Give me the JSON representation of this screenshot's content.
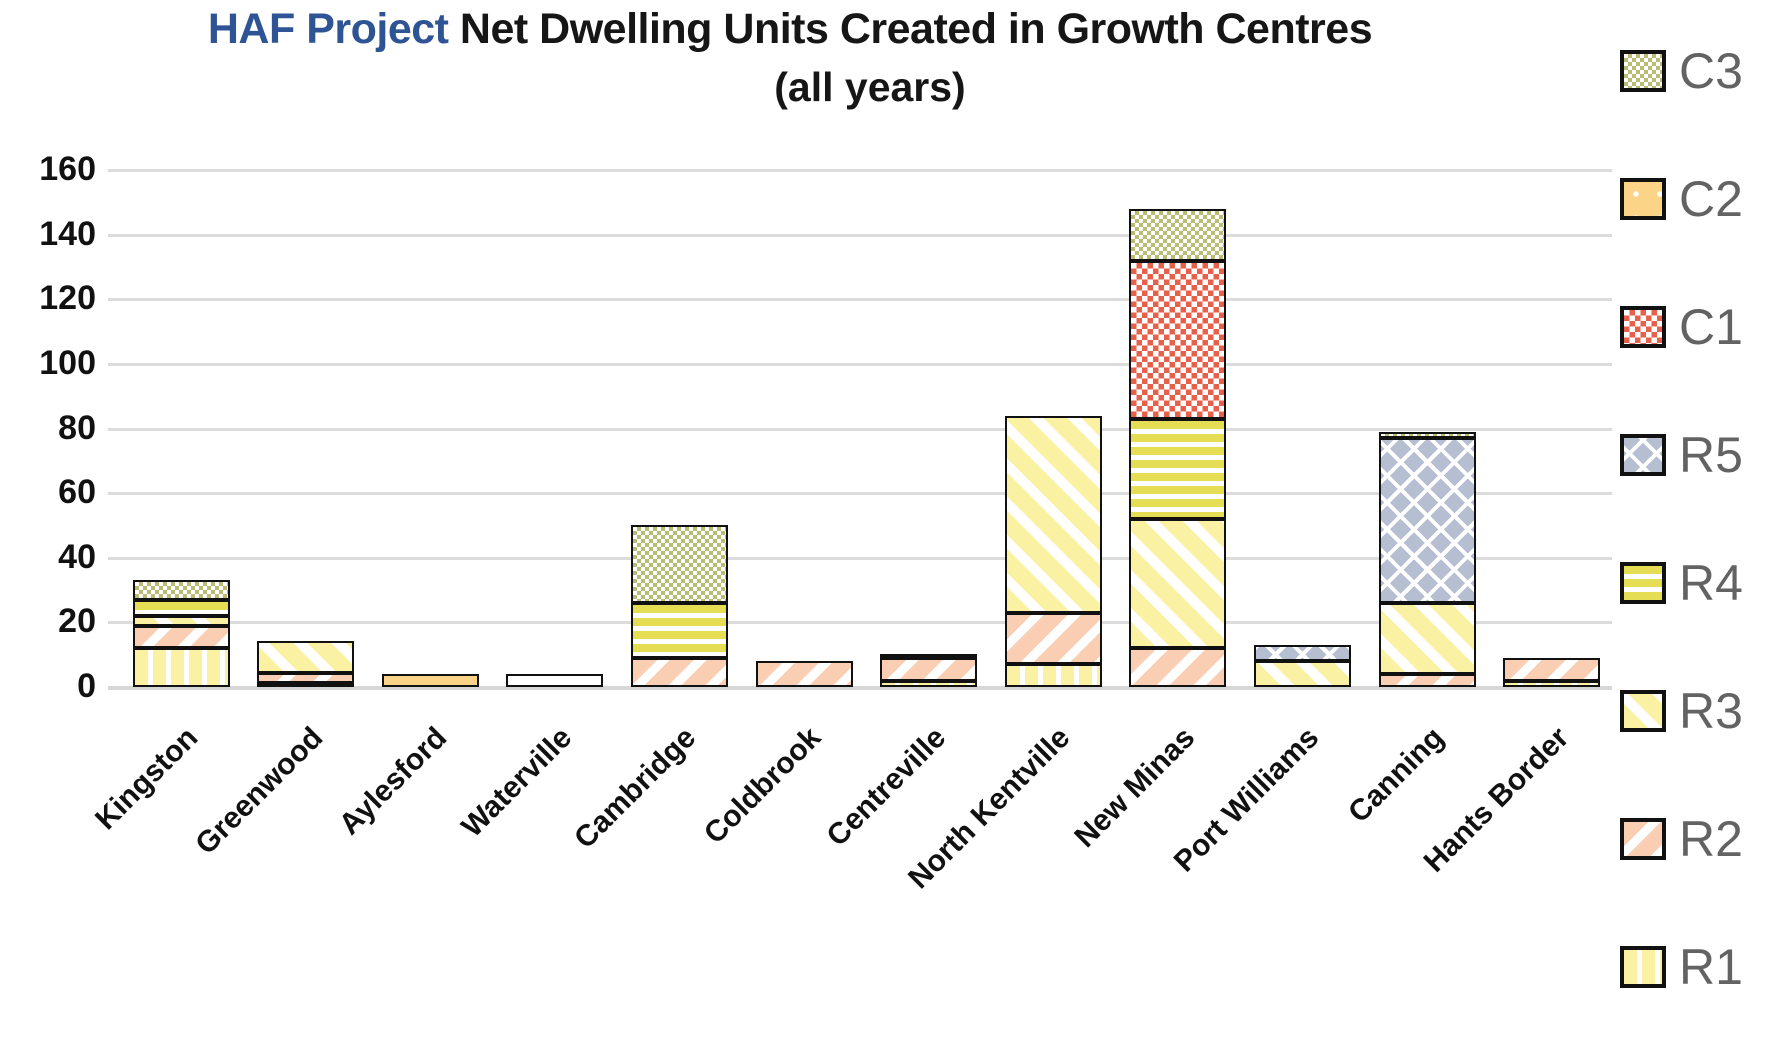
{
  "title": {
    "highlight": "HAF Project",
    "rest": " Net Dwelling Units Created in Growth Centres",
    "line2": "(all years)",
    "highlight_color": "#2F5496",
    "text_color": "#161616"
  },
  "y_axis": {
    "min": 0,
    "max": 160,
    "step": 20,
    "tick_labels": [
      "160",
      "140",
      "120",
      "100",
      "80",
      "60",
      "40",
      "20",
      "0"
    ]
  },
  "legend": {
    "position": "right",
    "items": [
      {
        "label": "C3",
        "series": "C3"
      },
      {
        "label": "C2",
        "series": "C2"
      },
      {
        "label": "C1",
        "series": "C1"
      },
      {
        "label": "R5",
        "series": "R5"
      },
      {
        "label": "R4",
        "series": "R4"
      },
      {
        "label": "R3",
        "series": "R3"
      },
      {
        "label": "R2",
        "series": "R2"
      },
      {
        "label": "R1",
        "series": "R1"
      }
    ],
    "text_color": "#636363"
  },
  "chart_data": {
    "type": "bar",
    "stacked": true,
    "grid": true,
    "title": "HAF Project Net Dwelling Units Created in Growth Centres (all years)",
    "xlabel": "",
    "ylabel": "",
    "ylim": [
      0,
      160
    ],
    "categories": [
      "Kingston",
      "Greenwood",
      "Aylesford",
      "Waterville",
      "Cambridge",
      "Coldbrook",
      "Centreville",
      "North Kentville",
      "New Minas",
      "Port Williams",
      "Canning",
      "Hants Border"
    ],
    "stack_order": [
      "R1",
      "R2",
      "R3",
      "R4",
      "R5",
      "C1",
      "C2",
      "C3"
    ],
    "series": [
      {
        "name": "R1",
        "values": [
          12,
          1,
          0,
          0,
          0,
          0,
          2,
          7,
          0,
          0,
          0,
          2
        ]
      },
      {
        "name": "R2",
        "values": [
          7,
          3,
          0,
          0,
          9,
          8,
          7,
          16,
          12,
          0,
          4,
          7
        ]
      },
      {
        "name": "R3",
        "values": [
          3,
          10,
          0,
          0,
          0,
          0,
          0,
          61,
          40,
          8,
          22,
          0
        ]
      },
      {
        "name": "R4",
        "values": [
          5,
          0,
          0,
          4,
          17,
          0,
          1,
          0,
          31,
          0,
          0,
          0
        ]
      },
      {
        "name": "R5",
        "values": [
          0,
          0,
          0,
          0,
          0,
          0,
          0,
          0,
          0,
          5,
          51,
          0
        ]
      },
      {
        "name": "C1",
        "values": [
          0,
          0,
          0,
          0,
          0,
          0,
          0,
          0,
          49,
          0,
          0,
          0
        ]
      },
      {
        "name": "C2",
        "values": [
          0,
          0,
          4,
          0,
          0,
          0,
          0,
          0,
          0,
          0,
          0,
          0
        ]
      },
      {
        "name": "C3",
        "values": [
          6,
          0,
          0,
          0,
          24,
          0,
          0,
          0,
          16,
          0,
          2,
          0
        ]
      }
    ],
    "totals": [
      33,
      14,
      4,
      4,
      50,
      8,
      10,
      84,
      148,
      13,
      79,
      9
    ],
    "series_colors": {
      "R1": "#FBF1A3",
      "R2": "#F9CEB2",
      "R3": "#FBF1A3",
      "R4": "#E5DE55",
      "R5": "#B6BED2",
      "C1": "#E7604B",
      "C2": "#FCD488",
      "C3": "#B9BC72"
    },
    "series_patterns": {
      "R1": "vertical-stripes",
      "R2": "diagonal-stripes-down",
      "R3": "diagonal-stripes-up",
      "R4": "horizontal-stripes",
      "R5": "diagonal-lattice",
      "C1": "checkerboard",
      "C2": "solid-with-white-dots",
      "C3": "small-checkerboard"
    },
    "gridline_color": "#dcdcdc"
  }
}
